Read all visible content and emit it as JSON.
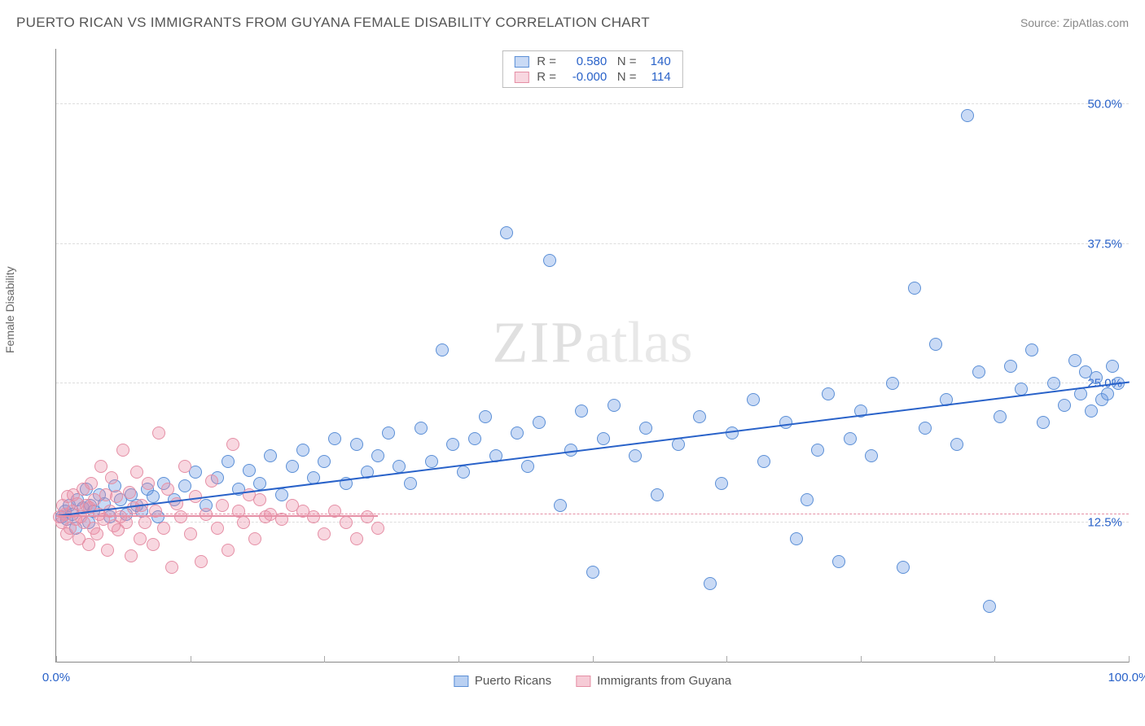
{
  "title": "PUERTO RICAN VS IMMIGRANTS FROM GUYANA FEMALE DISABILITY CORRELATION CHART",
  "source_label": "Source: ZipAtlas.com",
  "watermark": {
    "part1": "ZIP",
    "part2": "atlas"
  },
  "ylabel": "Female Disability",
  "chart": {
    "type": "scatter",
    "xlim": [
      0,
      100
    ],
    "ylim": [
      0,
      55
    ],
    "xtick_labels": [
      {
        "pos": 0,
        "text": "0.0%"
      },
      {
        "pos": 100,
        "text": "100.0%"
      }
    ],
    "xtick_marks": [
      0,
      12.5,
      25,
      37.5,
      50,
      62.5,
      75,
      87.5,
      100
    ],
    "ytick_labels": [
      {
        "pos": 12.5,
        "text": "12.5%"
      },
      {
        "pos": 25.0,
        "text": "25.0%"
      },
      {
        "pos": 37.5,
        "text": "37.5%"
      },
      {
        "pos": 50.0,
        "text": "50.0%"
      }
    ],
    "grid_color": "#dddddd",
    "background_color": "#ffffff",
    "series": [
      {
        "name": "Puerto Ricans",
        "color_fill": "rgba(99,150,226,0.35)",
        "color_stroke": "#5b8fd6",
        "trend_color": "#2962c9",
        "trend": {
          "x0": 0,
          "y0": 13.2,
          "x1": 100,
          "y1": 25.2
        },
        "stats": {
          "R": "0.580",
          "N": "140"
        },
        "marker_radius": 8,
        "points": [
          [
            0.5,
            13.0
          ],
          [
            0.8,
            13.5
          ],
          [
            1.0,
            12.8
          ],
          [
            1.2,
            14.0
          ],
          [
            1.5,
            13.2
          ],
          [
            1.8,
            12.0
          ],
          [
            2.0,
            14.5
          ],
          [
            2.5,
            13.8
          ],
          [
            2.8,
            15.5
          ],
          [
            3.0,
            12.5
          ],
          [
            3.2,
            14.0
          ],
          [
            3.5,
            13.5
          ],
          [
            4.0,
            15.0
          ],
          [
            4.5,
            14.2
          ],
          [
            5.0,
            13.0
          ],
          [
            5.5,
            15.8
          ],
          [
            6.0,
            14.5
          ],
          [
            6.5,
            13.2
          ],
          [
            7.0,
            15.0
          ],
          [
            7.5,
            14.0
          ],
          [
            8.0,
            13.5
          ],
          [
            8.5,
            15.5
          ],
          [
            9.0,
            14.8
          ],
          [
            9.5,
            13.0
          ],
          [
            10.0,
            16.0
          ],
          [
            11.0,
            14.5
          ],
          [
            12.0,
            15.8
          ],
          [
            13.0,
            17.0
          ],
          [
            14.0,
            14.0
          ],
          [
            15.0,
            16.5
          ],
          [
            16.0,
            18.0
          ],
          [
            17.0,
            15.5
          ],
          [
            18.0,
            17.2
          ],
          [
            19.0,
            16.0
          ],
          [
            20.0,
            18.5
          ],
          [
            21.0,
            15.0
          ],
          [
            22.0,
            17.5
          ],
          [
            23.0,
            19.0
          ],
          [
            24.0,
            16.5
          ],
          [
            25.0,
            18.0
          ],
          [
            26.0,
            20.0
          ],
          [
            27.0,
            16.0
          ],
          [
            28.0,
            19.5
          ],
          [
            29.0,
            17.0
          ],
          [
            30.0,
            18.5
          ],
          [
            31.0,
            20.5
          ],
          [
            32.0,
            17.5
          ],
          [
            33.0,
            16.0
          ],
          [
            34.0,
            21.0
          ],
          [
            35.0,
            18.0
          ],
          [
            36.0,
            28.0
          ],
          [
            37.0,
            19.5
          ],
          [
            38.0,
            17.0
          ],
          [
            39.0,
            20.0
          ],
          [
            40.0,
            22.0
          ],
          [
            41.0,
            18.5
          ],
          [
            42.0,
            38.5
          ],
          [
            43.0,
            20.5
          ],
          [
            44.0,
            17.5
          ],
          [
            45.0,
            21.5
          ],
          [
            46.0,
            36.0
          ],
          [
            47.0,
            14.0
          ],
          [
            48.0,
            19.0
          ],
          [
            49.0,
            22.5
          ],
          [
            50.0,
            8.0
          ],
          [
            51.0,
            20.0
          ],
          [
            52.0,
            23.0
          ],
          [
            54.0,
            18.5
          ],
          [
            55.0,
            21.0
          ],
          [
            56.0,
            15.0
          ],
          [
            58.0,
            19.5
          ],
          [
            60.0,
            22.0
          ],
          [
            61.0,
            7.0
          ],
          [
            62.0,
            16.0
          ],
          [
            63.0,
            20.5
          ],
          [
            65.0,
            23.5
          ],
          [
            66.0,
            18.0
          ],
          [
            68.0,
            21.5
          ],
          [
            69.0,
            11.0
          ],
          [
            70.0,
            14.5
          ],
          [
            71.0,
            19.0
          ],
          [
            72.0,
            24.0
          ],
          [
            73.0,
            9.0
          ],
          [
            74.0,
            20.0
          ],
          [
            75.0,
            22.5
          ],
          [
            76.0,
            18.5
          ],
          [
            78.0,
            25.0
          ],
          [
            79.0,
            8.5
          ],
          [
            80.0,
            33.5
          ],
          [
            81.0,
            21.0
          ],
          [
            82.0,
            28.5
          ],
          [
            83.0,
            23.5
          ],
          [
            84.0,
            19.5
          ],
          [
            85.0,
            49.0
          ],
          [
            86.0,
            26.0
          ],
          [
            87.0,
            5.0
          ],
          [
            88.0,
            22.0
          ],
          [
            89.0,
            26.5
          ],
          [
            90.0,
            24.5
          ],
          [
            91.0,
            28.0
          ],
          [
            92.0,
            21.5
          ],
          [
            93.0,
            25.0
          ],
          [
            94.0,
            23.0
          ],
          [
            95.0,
            27.0
          ],
          [
            95.5,
            24.0
          ],
          [
            96.0,
            26.0
          ],
          [
            96.5,
            22.5
          ],
          [
            97.0,
            25.5
          ],
          [
            97.5,
            23.5
          ],
          [
            98.0,
            24.0
          ],
          [
            98.5,
            26.5
          ],
          [
            99.0,
            25.0
          ]
        ]
      },
      {
        "name": "Immigrants from Guyana",
        "color_fill": "rgba(236,140,165,0.35)",
        "color_stroke": "#e58fa5",
        "trend_color": "#e58fa5",
        "trend": {
          "x0": 0,
          "y0": 13.2,
          "x1": 30,
          "y1": 13.2
        },
        "trend_dash_full": {
          "y": 13.2
        },
        "stats": {
          "R": "-0.000",
          "N": "114"
        },
        "marker_radius": 8,
        "points": [
          [
            0.3,
            13.0
          ],
          [
            0.5,
            12.5
          ],
          [
            0.6,
            14.0
          ],
          [
            0.8,
            13.2
          ],
          [
            1.0,
            11.5
          ],
          [
            1.1,
            14.8
          ],
          [
            1.3,
            12.0
          ],
          [
            1.5,
            13.5
          ],
          [
            1.6,
            15.0
          ],
          [
            1.8,
            12.8
          ],
          [
            2.0,
            14.2
          ],
          [
            2.1,
            11.0
          ],
          [
            2.3,
            13.0
          ],
          [
            2.5,
            15.5
          ],
          [
            2.6,
            12.5
          ],
          [
            2.8,
            14.0
          ],
          [
            3.0,
            10.5
          ],
          [
            3.1,
            13.8
          ],
          [
            3.3,
            16.0
          ],
          [
            3.5,
            12.0
          ],
          [
            3.6,
            14.5
          ],
          [
            3.8,
            11.5
          ],
          [
            4.0,
            13.2
          ],
          [
            4.2,
            17.5
          ],
          [
            4.4,
            12.8
          ],
          [
            4.6,
            15.0
          ],
          [
            4.8,
            10.0
          ],
          [
            5.0,
            13.5
          ],
          [
            5.2,
            16.5
          ],
          [
            5.4,
            12.2
          ],
          [
            5.6,
            14.8
          ],
          [
            5.8,
            11.8
          ],
          [
            6.0,
            13.0
          ],
          [
            6.2,
            19.0
          ],
          [
            6.5,
            12.5
          ],
          [
            6.8,
            15.2
          ],
          [
            7.0,
            9.5
          ],
          [
            7.2,
            13.8
          ],
          [
            7.5,
            17.0
          ],
          [
            7.8,
            11.0
          ],
          [
            8.0,
            14.0
          ],
          [
            8.3,
            12.5
          ],
          [
            8.6,
            16.0
          ],
          [
            9.0,
            10.5
          ],
          [
            9.3,
            13.5
          ],
          [
            9.6,
            20.5
          ],
          [
            10.0,
            12.0
          ],
          [
            10.4,
            15.5
          ],
          [
            10.8,
            8.5
          ],
          [
            11.2,
            14.2
          ],
          [
            11.6,
            13.0
          ],
          [
            12.0,
            17.5
          ],
          [
            12.5,
            11.5
          ],
          [
            13.0,
            14.8
          ],
          [
            13.5,
            9.0
          ],
          [
            14.0,
            13.2
          ],
          [
            14.5,
            16.2
          ],
          [
            15.0,
            12.0
          ],
          [
            15.5,
            14.0
          ],
          [
            16.0,
            10.0
          ],
          [
            16.5,
            19.5
          ],
          [
            17.0,
            13.5
          ],
          [
            17.5,
            12.5
          ],
          [
            18.0,
            15.0
          ],
          [
            18.5,
            11.0
          ],
          [
            19.0,
            14.5
          ],
          [
            19.5,
            13.0
          ],
          [
            20.0,
            13.2
          ],
          [
            21.0,
            12.8
          ],
          [
            22.0,
            14.0
          ],
          [
            23.0,
            13.5
          ],
          [
            24.0,
            13.0
          ],
          [
            25.0,
            11.5
          ],
          [
            26.0,
            13.5
          ],
          [
            27.0,
            12.5
          ],
          [
            28.0,
            11.0
          ],
          [
            29.0,
            13.0
          ],
          [
            30.0,
            12.0
          ]
        ]
      }
    ],
    "stats_box": {
      "r_label": "R =",
      "n_label": "N =",
      "value_color": "#2962c9"
    },
    "bottom_legend": [
      {
        "label": "Puerto Ricans",
        "fill": "rgba(99,150,226,0.45)",
        "stroke": "#5b8fd6"
      },
      {
        "label": "Immigrants from Guyana",
        "fill": "rgba(236,140,165,0.45)",
        "stroke": "#e58fa5"
      }
    ],
    "axis_label_color": "#2962c9",
    "ytick_color": "#2962c9"
  }
}
